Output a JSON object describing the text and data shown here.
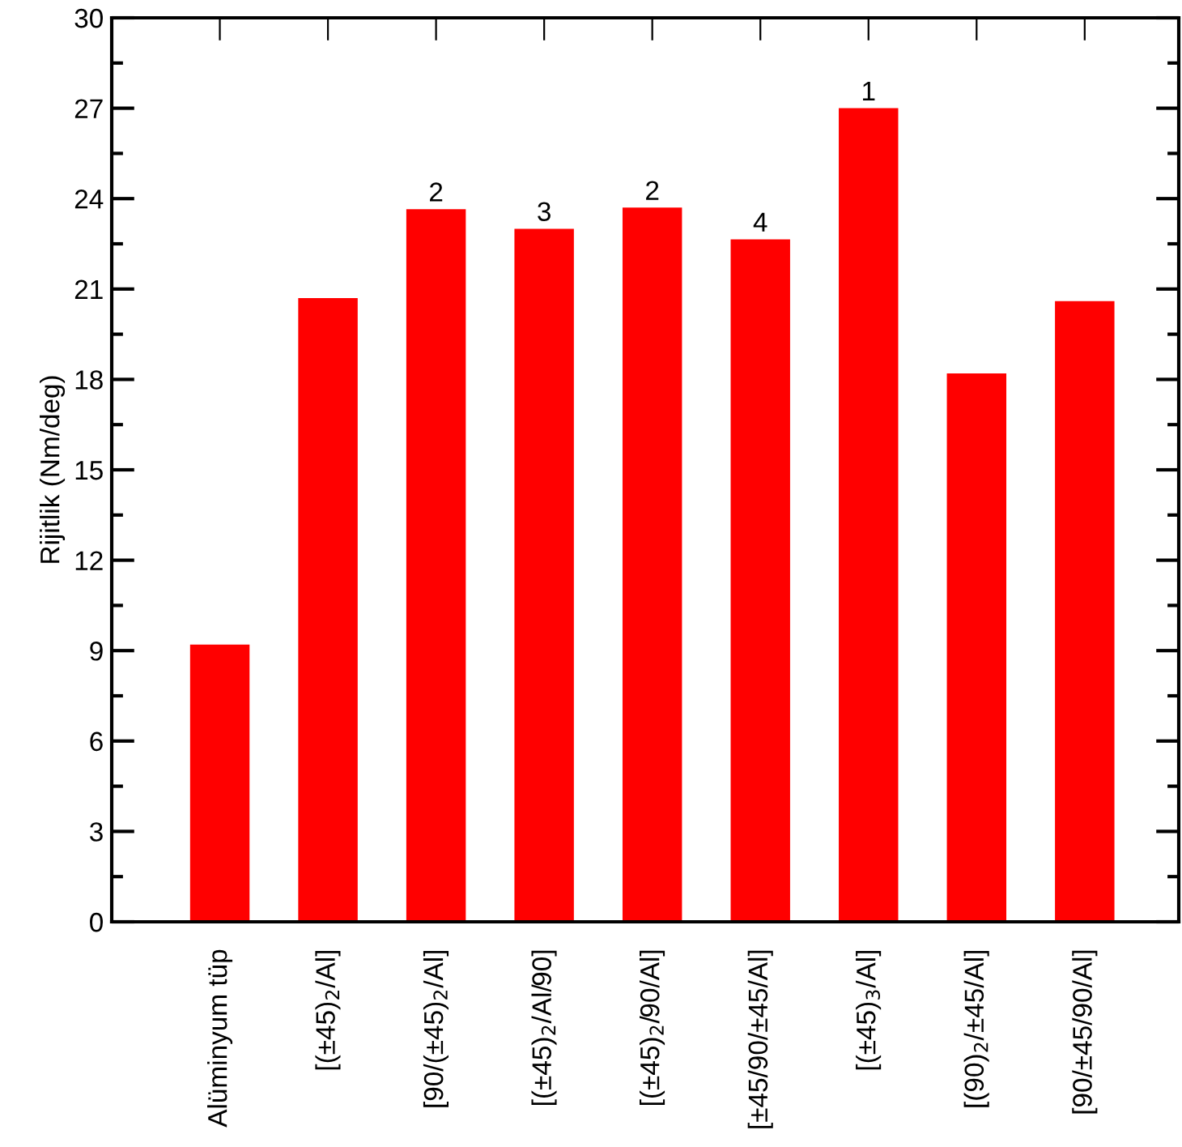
{
  "chart_data": {
    "type": "bar",
    "ylabel": "Rijitlik (Nm/deg)",
    "categories": [
      "Alüminyum tüp",
      "[(±45)$_{2}$/Al]",
      "[90/(±45)$_{2}$/Al]",
      "[(±45)$_{2}$/Al/90]",
      "[(±45)$_{2}$/90/Al]",
      "[±45/90/±45/Al]",
      "[(±45)$_{3}$/Al]",
      "[(90)$_{2}$/±45/Al]",
      "[90/±45/90/Al]"
    ],
    "values": [
      9.2,
      20.7,
      23.65,
      23.0,
      23.7,
      22.65,
      27.0,
      18.2,
      20.6
    ],
    "annotations": [
      {
        "text": "2",
        "x": "[90/(±45)$_{2}$/Al]",
        "y": 23.65
      },
      {
        "text": "3",
        "x": "[(±45)$_{2}$/Al/90]",
        "y": 23.0
      },
      {
        "text": "2",
        "x": "[(±45)$_{2}$/90/Al]",
        "y": 23.7
      },
      {
        "text": "4",
        "x": "[±45/90/±45/Al]",
        "y": 22.65
      },
      {
        "text": "1",
        "x": "[(±45)$_{3}$/Al]",
        "y": 27.0
      }
    ],
    "color": "#ff0000",
    "ylim": [
      0,
      30
    ],
    "yticks": [
      0,
      3,
      6,
      9,
      12,
      15,
      18,
      21,
      24,
      27,
      30
    ],
    "grid": false
  }
}
